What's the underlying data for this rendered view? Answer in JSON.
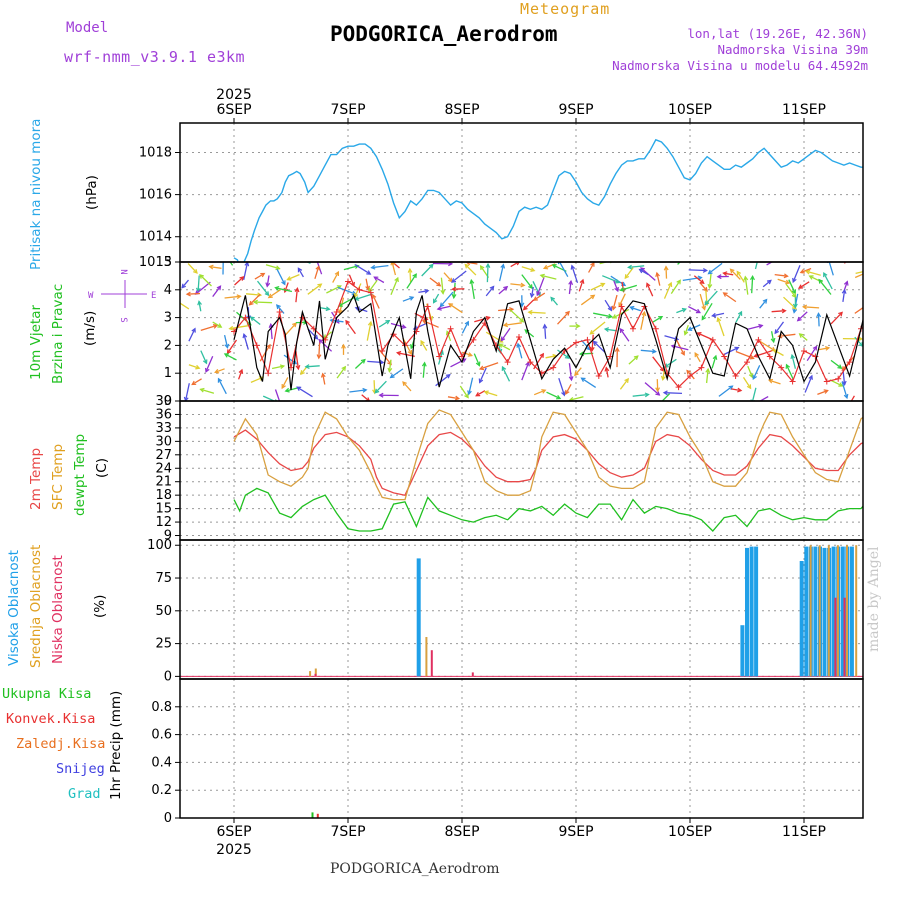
{
  "header": {
    "model_label": "Model",
    "model_name": "wrf-nmm_v3.9.1 e3km",
    "title": "Meteogram",
    "station": "PODGORICA_Aerodrom",
    "coords": "lon,lat (19.26E, 42.36N)",
    "altitude": "Nadmorska Visina 39m",
    "model_altitude": "Nadmorska Visina u modelu 64.4592m",
    "year": "2025",
    "watermark": "made by Angel",
    "footer": "PODGORICA_Aerodrom"
  },
  "colors": {
    "pressure": "#2aa8e8",
    "speed": "#000000",
    "gust": "#e83030",
    "t2m": "#e84848",
    "sfc": "#d8a040",
    "dew": "#20c020",
    "high": "#20a0e8",
    "mid": "#d8a040",
    "low": "#e03060",
    "purple": "#a040d8",
    "total_rain": "#20c020",
    "conv_rain": "#e83030",
    "frozen_rain": "#e87020",
    "snow": "#4040e0",
    "hail": "#20c0c0"
  },
  "chart_data": [
    {
      "type": "line",
      "title": "Pritisak na nivou mora",
      "ylabel": "(hPa)",
      "ylim": [
        1012.8,
        1019.4
      ],
      "yticks": [
        1014,
        1016,
        1018
      ],
      "partial_tick": "1013",
      "days": [
        "6SEP",
        "7SEP",
        "8SEP",
        "9SEP",
        "10SEP",
        "11SEP"
      ],
      "x": [
        0,
        0.03,
        0.05,
        0.08,
        0.12,
        0.15,
        0.18,
        0.22,
        0.25,
        0.28,
        0.32,
        0.35,
        0.38,
        0.42,
        0.45,
        0.48,
        0.52,
        0.55,
        0.58,
        0.62,
        0.65,
        0.7,
        0.75,
        0.8,
        0.85,
        0.9,
        0.95,
        1,
        1.05,
        1.1,
        1.15,
        1.2,
        1.25,
        1.3,
        1.35,
        1.4,
        1.45,
        1.5,
        1.55,
        1.6,
        1.65,
        1.7,
        1.75,
        1.8,
        1.85,
        1.9,
        1.95,
        2,
        2.05,
        2.1,
        2.15,
        2.2,
        2.25,
        2.3,
        2.35,
        2.4,
        2.45,
        2.5,
        2.55,
        2.6,
        2.65,
        2.7,
        2.75,
        2.8,
        2.85,
        2.9,
        2.95,
        3,
        3.05,
        3.1,
        3.15,
        3.2,
        3.25,
        3.3,
        3.35,
        3.4,
        3.45,
        3.5,
        3.55,
        3.6,
        3.65,
        3.7,
        3.75,
        3.8,
        3.85,
        3.9,
        3.95,
        4,
        4.05,
        4.1,
        4.15,
        4.2,
        4.25,
        4.3,
        4.35,
        4.4,
        4.45,
        4.5,
        4.55,
        4.6,
        4.65,
        4.7,
        4.75,
        4.8,
        4.85,
        4.9,
        4.95,
        5,
        5.05,
        5.1,
        5.15,
        5.2,
        5.25,
        5.3,
        5.35,
        5.4,
        5.45,
        5.5,
        5.55
      ],
      "values": [
        1013.0,
        1012.9,
        1012.6,
        1012.7,
        1013.2,
        1013.8,
        1014.3,
        1014.9,
        1015.2,
        1015.5,
        1015.7,
        1015.7,
        1015.8,
        1016.1,
        1016.6,
        1016.9,
        1017.0,
        1017.1,
        1017.0,
        1016.6,
        1016.1,
        1016.4,
        1016.9,
        1017.4,
        1017.9,
        1017.9,
        1018.2,
        1018.3,
        1018.3,
        1018.4,
        1018.4,
        1018.2,
        1017.8,
        1017.2,
        1016.5,
        1015.6,
        1014.9,
        1015.2,
        1015.7,
        1015.5,
        1015.8,
        1016.2,
        1016.2,
        1016.1,
        1015.8,
        1015.5,
        1015.7,
        1015.6,
        1015.3,
        1015.1,
        1014.9,
        1014.6,
        1014.4,
        1014.2,
        1013.9,
        1014.0,
        1014.5,
        1015.2,
        1015.4,
        1015.3,
        1015.4,
        1015.3,
        1015.5,
        1016.2,
        1016.9,
        1017.1,
        1017.0,
        1016.6,
        1016.1,
        1015.8,
        1015.6,
        1015.5,
        1015.9,
        1016.5,
        1017.0,
        1017.4,
        1017.6,
        1017.6,
        1017.7,
        1017.7,
        1018.1,
        1018.6,
        1018.5,
        1018.2,
        1017.8,
        1017.3,
        1016.8,
        1016.7,
        1017.0,
        1017.5,
        1017.8,
        1017.6,
        1017.4,
        1017.2,
        1017.2,
        1017.4,
        1017.3,
        1017.5,
        1017.7,
        1018.0,
        1018.2,
        1017.9,
        1017.6,
        1017.3,
        1017.4,
        1017.6,
        1017.5,
        1017.7,
        1017.9,
        1018.1,
        1018.0,
        1017.8,
        1017.6,
        1017.5,
        1017.4,
        1017.5,
        1017.4,
        1017.3,
        1017.3
      ]
    },
    {
      "type": "line",
      "title": "10m Vjetar Brzina i Pravac",
      "ylabel": "(m/s)",
      "ylim": [
        0,
        5
      ],
      "yticks": [
        0,
        1,
        2,
        3,
        4,
        5
      ],
      "compass": {
        "n": "N",
        "w": "W",
        "e": "E",
        "s": "S"
      },
      "series": [
        {
          "name": "speed",
          "x": [
            0,
            0.1,
            0.2,
            0.25,
            0.3,
            0.4,
            0.45,
            0.5,
            0.55,
            0.6,
            0.7,
            0.75,
            0.8,
            0.9,
            1,
            1.05,
            1.1,
            1.2,
            1.3,
            1.35,
            1.45,
            1.55,
            1.6,
            1.65,
            1.7,
            1.8,
            1.9,
            2,
            2.1,
            2.2,
            2.3,
            2.4,
            2.5,
            2.6,
            2.7,
            2.8,
            2.9,
            3,
            3.1,
            3.2,
            3.3,
            3.4,
            3.5,
            3.6,
            3.7,
            3.8,
            3.9,
            4,
            4.1,
            4.2,
            4.3,
            4.4,
            4.5,
            4.6,
            4.7,
            4.8,
            4.9,
            5,
            5.1,
            5.2,
            5.3,
            5.4,
            5.5,
            5.55
          ],
          "values": [
            2.2,
            3.8,
            1.2,
            0.7,
            2.5,
            3.0,
            2.4,
            0.4,
            2.1,
            3.2,
            2.0,
            3.6,
            1.5,
            3.0,
            3.4,
            3.8,
            3.2,
            3.5,
            0.9,
            2.0,
            3.0,
            0.8,
            3.2,
            3.8,
            2.5,
            0.5,
            2.0,
            1.4,
            2.5,
            3.0,
            1.8,
            3.5,
            3.6,
            2.2,
            0.8,
            1.5,
            1.9,
            1.2,
            2.0,
            2.4,
            1.2,
            3.1,
            3.6,
            3.5,
            2.2,
            0.8,
            2.6,
            3.0,
            2.0,
            1.0,
            0.9,
            2.8,
            2.6,
            1.6,
            0.8,
            2.5,
            2.0,
            0.7,
            1.4,
            3.1,
            2.0,
            0.9,
            2.6,
            3.5
          ]
        },
        {
          "name": "gust",
          "x": [
            0,
            0.1,
            0.2,
            0.3,
            0.4,
            0.5,
            0.6,
            0.7,
            0.8,
            0.9,
            1,
            1.1,
            1.2,
            1.3,
            1.4,
            1.5,
            1.6,
            1.7,
            1.8,
            1.9,
            2,
            2.1,
            2.2,
            2.3,
            2.4,
            2.5,
            2.6,
            2.7,
            2.8,
            2.9,
            3,
            3.1,
            3.2,
            3.3,
            3.4,
            3.5,
            3.6,
            3.7,
            3.8,
            3.9,
            4,
            4.1,
            4.2,
            4.3,
            4.4,
            4.5,
            4.6,
            4.7,
            4.8,
            4.9,
            5,
            5.1,
            5.2,
            5.3,
            5.4,
            5.5,
            5.55
          ],
          "values": [
            2.5,
            3.0,
            2.0,
            1.0,
            3.2,
            1.2,
            3.0,
            2.6,
            2.2,
            3.2,
            4.3,
            4.0,
            3.9,
            1.8,
            2.4,
            2.0,
            2.5,
            3.4,
            1.6,
            2.6,
            1.6,
            2.2,
            2.8,
            2.0,
            1.4,
            2.3,
            1.4,
            1.0,
            1.2,
            1.8,
            2.1,
            2.2,
            0.9,
            1.6,
            3.4,
            2.6,
            3.4,
            2.6,
            1.0,
            0.5,
            0.9,
            1.2,
            2.2,
            1.6,
            0.9,
            1.4,
            2.2,
            1.6,
            1.2,
            0.7,
            1.8,
            1.6,
            0.7,
            0.8,
            1.4,
            2.6,
            2.8
          ]
        }
      ],
      "arrow_colors": [
        "#e83030",
        "#f07030",
        "#f0a030",
        "#e0d030",
        "#a0e030",
        "#30d040",
        "#30c0a0",
        "#3090e0",
        "#5050e0",
        "#9030d0"
      ]
    },
    {
      "type": "line",
      "title": "2m Temp / SFC Temp / dewpt Temp",
      "ylabel": "(C)",
      "ylim": [
        8,
        39
      ],
      "yticks": [
        9,
        12,
        15,
        18,
        21,
        24,
        27,
        30,
        33,
        36,
        39
      ],
      "series": [
        {
          "name": "2m Temp",
          "x": [
            0,
            0.1,
            0.2,
            0.3,
            0.4,
            0.5,
            0.6,
            0.65,
            0.7,
            0.8,
            0.9,
            1,
            1.1,
            1.2,
            1.25,
            1.3,
            1.4,
            1.5,
            1.6,
            1.7,
            1.8,
            1.9,
            2,
            2.1,
            2.2,
            2.3,
            2.4,
            2.5,
            2.6,
            2.65,
            2.7,
            2.8,
            2.9,
            3,
            3.1,
            3.2,
            3.3,
            3.4,
            3.5,
            3.6,
            3.65,
            3.7,
            3.8,
            3.9,
            4,
            4.1,
            4.2,
            4.3,
            4.4,
            4.5,
            4.6,
            4.65,
            4.7,
            4.8,
            4.9,
            5,
            5.1,
            5.2,
            5.3,
            5.4,
            5.5,
            5.55
          ],
          "values": [
            31.0,
            32.5,
            30.5,
            27.5,
            25.0,
            23.5,
            24.0,
            25.5,
            28.5,
            31.5,
            32.0,
            31.0,
            29.0,
            26.0,
            22.0,
            19.5,
            18.5,
            18.0,
            23.5,
            29.0,
            31.5,
            32.0,
            30.5,
            28.0,
            24.5,
            22.0,
            21.0,
            21.0,
            21.5,
            24.0,
            28.0,
            31.0,
            31.5,
            30.5,
            28.0,
            25.0,
            23.0,
            22.0,
            22.5,
            24.0,
            27.0,
            30.0,
            31.5,
            31.0,
            29.0,
            26.0,
            23.5,
            22.5,
            22.5,
            24.5,
            28.5,
            30.0,
            31.5,
            31.0,
            29.0,
            26.5,
            24.0,
            23.5,
            23.5,
            27.0,
            29.5,
            30.0
          ]
        },
        {
          "name": "SFC Temp",
          "x": [
            0,
            0.1,
            0.2,
            0.3,
            0.4,
            0.5,
            0.6,
            0.65,
            0.7,
            0.8,
            0.9,
            1,
            1.1,
            1.2,
            1.25,
            1.3,
            1.4,
            1.5,
            1.6,
            1.7,
            1.8,
            1.9,
            2,
            2.1,
            2.2,
            2.3,
            2.4,
            2.5,
            2.6,
            2.65,
            2.7,
            2.8,
            2.9,
            3,
            3.1,
            3.2,
            3.3,
            3.4,
            3.5,
            3.6,
            3.65,
            3.7,
            3.8,
            3.9,
            4,
            4.1,
            4.2,
            4.3,
            4.4,
            4.5,
            4.6,
            4.65,
            4.7,
            4.8,
            4.9,
            5,
            5.1,
            5.2,
            5.3,
            5.4,
            5.5,
            5.55
          ],
          "values": [
            30.0,
            35.0,
            31.5,
            22.5,
            21.0,
            20.0,
            22.0,
            24.0,
            31.0,
            36.5,
            35.0,
            31.0,
            28.0,
            23.0,
            20.0,
            17.5,
            17.0,
            17.0,
            26.0,
            34.0,
            37.0,
            36.0,
            32.0,
            28.0,
            21.0,
            19.0,
            18.0,
            18.0,
            19.0,
            24.0,
            31.0,
            36.5,
            36.0,
            32.0,
            28.0,
            22.0,
            20.0,
            19.5,
            19.5,
            21.0,
            27.0,
            33.0,
            36.5,
            36.0,
            31.0,
            27.0,
            21.0,
            20.0,
            20.0,
            23.0,
            31.0,
            34.0,
            36.5,
            36.0,
            31.0,
            27.0,
            23.0,
            21.5,
            21.0,
            28.0,
            35.0,
            36.0
          ]
        },
        {
          "name": "dewpt Temp",
          "x": [
            0,
            0.05,
            0.1,
            0.2,
            0.3,
            0.4,
            0.5,
            0.6,
            0.7,
            0.8,
            0.9,
            1,
            1.1,
            1.2,
            1.3,
            1.4,
            1.5,
            1.6,
            1.7,
            1.8,
            1.9,
            2,
            2.1,
            2.2,
            2.3,
            2.4,
            2.5,
            2.6,
            2.7,
            2.8,
            2.9,
            3,
            3.1,
            3.2,
            3.3,
            3.4,
            3.5,
            3.6,
            3.7,
            3.8,
            3.9,
            4,
            4.1,
            4.2,
            4.3,
            4.4,
            4.5,
            4.6,
            4.7,
            4.8,
            4.9,
            5,
            5.1,
            5.2,
            5.3,
            5.4,
            5.5,
            5.55
          ],
          "values": [
            17.0,
            14.5,
            18.0,
            19.5,
            18.5,
            14.0,
            13.0,
            15.5,
            17.0,
            18.0,
            14.0,
            10.5,
            10.0,
            10.0,
            10.5,
            16.0,
            16.5,
            11.0,
            17.5,
            14.5,
            13.5,
            12.5,
            12.0,
            13.0,
            13.5,
            12.5,
            15.0,
            14.5,
            15.5,
            13.5,
            16.0,
            14.0,
            13.0,
            16.0,
            16.0,
            12.5,
            17.0,
            14.0,
            15.5,
            15.0,
            14.0,
            13.5,
            12.5,
            10.0,
            13.0,
            13.5,
            11.0,
            14.5,
            15.0,
            13.5,
            12.5,
            13.0,
            12.5,
            12.5,
            14.5,
            15.0,
            15.0,
            16.5
          ]
        }
      ]
    },
    {
      "type": "bar",
      "title": "Visoka / Srednja / Niska Oblacnost",
      "ylabel": "(%)",
      "ylim": [
        -2,
        104
      ],
      "yticks": [
        0,
        25,
        50,
        75,
        100
      ],
      "series": [
        {
          "name": "Visoka Oblacnost",
          "x": [
            1.62,
            4.46,
            4.5,
            4.54,
            4.58,
            4.98,
            5.02,
            5.06,
            5.1,
            5.14,
            5.18,
            5.22,
            5.26,
            5.3,
            5.34,
            5.38,
            5.42
          ],
          "values": [
            90,
            39,
            98,
            99,
            99,
            88,
            99,
            99,
            99,
            99,
            98,
            98,
            99,
            99,
            99,
            99,
            99
          ]
        },
        {
          "name": "Srednja Oblacnost",
          "x": [
            0.65,
            0.7,
            1.67,
            5.04,
            5.12,
            5.2,
            5.28,
            5.36,
            5.44
          ],
          "values": [
            4,
            6,
            30,
            100,
            100,
            100,
            100,
            100,
            100
          ]
        },
        {
          "name": "Niska Oblacnost",
          "x": [
            0.68,
            1.7,
            2.06,
            5.24,
            5.32
          ],
          "values": [
            2,
            20,
            3,
            60,
            60
          ]
        }
      ]
    },
    {
      "type": "bar",
      "title": "1hr Precip",
      "ylabel": "1hr Precip (mm)",
      "ylim": [
        0,
        1.0
      ],
      "yticks": [
        0,
        0.2,
        0.4,
        0.6,
        0.8
      ],
      "series": [
        {
          "name": "Ukupna Kisa",
          "x": [
            0.68
          ],
          "values": [
            0.04
          ]
        },
        {
          "name": "Konvek.Kisa",
          "x": [
            0.7
          ],
          "values": [
            0.03
          ]
        },
        {
          "name": "Zaledj.Kisa",
          "x": [],
          "values": []
        },
        {
          "name": "Snijeg",
          "x": [],
          "values": []
        },
        {
          "name": "Grad",
          "x": [],
          "values": []
        }
      ]
    }
  ],
  "labels": {
    "pressure": "Pritisak na nivou mora",
    "pressure_unit": "(hPa)",
    "wind1": "10m Vjetar",
    "wind2": "Brzina i Pravac",
    "wind_unit": "(m/s)",
    "t2m": "2m Temp",
    "sfc": "SFC Temp",
    "dew": "dewpt Temp",
    "temp_unit": "(C)",
    "high": "Visoka Oblacnost",
    "mid": "Srednja Oblacnost",
    "low": "Niska Oblacnost",
    "cloud_unit": "(%)",
    "precip_unit": "1hr Precip (mm)",
    "total_rain": "Ukupna Kisa",
    "conv_rain": "Konvek.Kisa",
    "frozen_rain": "Zaledj.Kisa",
    "snow": "Snijeg",
    "hail": "Grad"
  }
}
